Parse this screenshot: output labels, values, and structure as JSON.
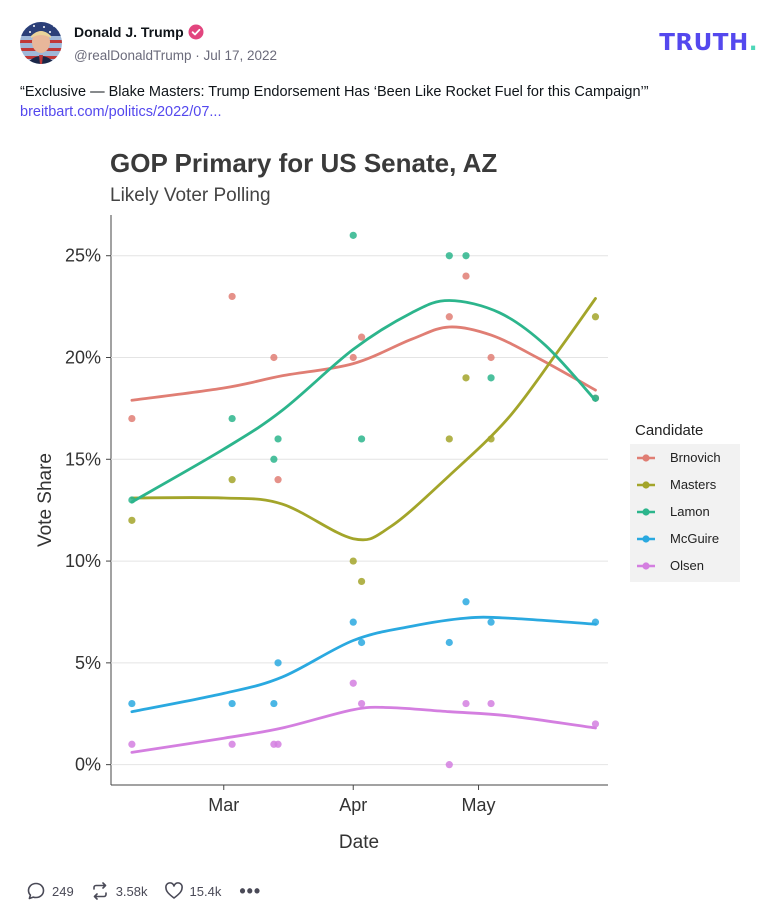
{
  "post": {
    "author_name": "Donald J. Trump",
    "author_handle": "@realDonaldTrump",
    "separator": " · ",
    "date": "Jul 17, 2022",
    "text": "“Exclusive — Blake Masters: Trump Endorsement Has ‘Been Like Rocket Fuel for this Campaign’”",
    "link_text": "breitbart.com/politics/2022/07..."
  },
  "brand": {
    "logo_main": "TRUTH",
    "logo_dot": ".",
    "color": "#5448ee",
    "dot_color": "#4ed7b8"
  },
  "footer": {
    "replies": "249",
    "retruths": "3.58k",
    "likes": "15.4k",
    "more": "•••",
    "icons": [
      "reply-icon",
      "retruth-icon",
      "like-icon",
      "more-icon"
    ]
  },
  "chart_data": {
    "type": "scatter",
    "title": "GOP Primary for US Senate, AZ",
    "subtitle": "Likely Voter Polling",
    "xlabel": "Date",
    "ylabel": "Vote Share",
    "x_ticks": [
      "Mar",
      "Apr",
      "May"
    ],
    "y_ticks": [
      "0%",
      "5%",
      "10%",
      "15%",
      "20%",
      "25%"
    ],
    "x_range": [
      "2022-02-02",
      "2022-06-01"
    ],
    "x_tick_dates": [
      "2022-03-01",
      "2022-04-01",
      "2022-05-01"
    ],
    "ylim": [
      -1,
      27
    ],
    "y_tick_values": [
      0,
      5,
      10,
      15,
      20,
      25
    ],
    "legend_title": "Candidate",
    "legend_position": "right",
    "grid": true,
    "series": [
      {
        "name": "Brnovich",
        "color": "#e07e74",
        "points": [
          [
            "2022-02-07",
            17
          ],
          [
            "2022-03-03",
            23
          ],
          [
            "2022-03-13",
            20
          ],
          [
            "2022-03-14",
            14
          ],
          [
            "2022-04-01",
            20
          ],
          [
            "2022-04-03",
            21
          ],
          [
            "2022-04-24",
            22
          ],
          [
            "2022-04-28",
            24
          ],
          [
            "2022-05-04",
            20
          ],
          [
            "2022-05-29",
            18
          ]
        ],
        "trend": [
          [
            "2022-02-07",
            17.9
          ],
          [
            "2022-03-01",
            18.5
          ],
          [
            "2022-03-15",
            19.1
          ],
          [
            "2022-04-01",
            19.7
          ],
          [
            "2022-04-15",
            20.9
          ],
          [
            "2022-04-24",
            21.5
          ],
          [
            "2022-05-04",
            21.1
          ],
          [
            "2022-05-15",
            20.0
          ],
          [
            "2022-05-29",
            18.4
          ]
        ]
      },
      {
        "name": "Masters",
        "color": "#a3a52a",
        "points": [
          [
            "2022-02-07",
            12
          ],
          [
            "2022-03-03",
            14
          ],
          [
            "2022-04-01",
            10
          ],
          [
            "2022-04-03",
            9
          ],
          [
            "2022-04-24",
            16
          ],
          [
            "2022-04-28",
            19
          ],
          [
            "2022-05-04",
            16
          ],
          [
            "2022-05-29",
            22
          ]
        ],
        "trend": [
          [
            "2022-02-07",
            13.1
          ],
          [
            "2022-03-01",
            13.1
          ],
          [
            "2022-03-15",
            12.8
          ],
          [
            "2022-04-01",
            11.1
          ],
          [
            "2022-04-10",
            11.7
          ],
          [
            "2022-04-24",
            14.2
          ],
          [
            "2022-05-08",
            17.0
          ],
          [
            "2022-05-20",
            20.3
          ],
          [
            "2022-05-29",
            22.9
          ]
        ]
      },
      {
        "name": "Lamon",
        "color": "#2cb58c",
        "points": [
          [
            "2022-02-07",
            13
          ],
          [
            "2022-03-03",
            17
          ],
          [
            "2022-03-13",
            15
          ],
          [
            "2022-03-14",
            16
          ],
          [
            "2022-04-01",
            26
          ],
          [
            "2022-04-03",
            16
          ],
          [
            "2022-04-24",
            25
          ],
          [
            "2022-04-28",
            25
          ],
          [
            "2022-05-04",
            19
          ],
          [
            "2022-05-29",
            18
          ]
        ],
        "trend": [
          [
            "2022-02-07",
            12.9
          ],
          [
            "2022-03-01",
            15.5
          ],
          [
            "2022-03-15",
            17.4
          ],
          [
            "2022-04-01",
            20.4
          ],
          [
            "2022-04-15",
            22.2
          ],
          [
            "2022-04-24",
            22.8
          ],
          [
            "2022-05-06",
            22.2
          ],
          [
            "2022-05-17",
            20.6
          ],
          [
            "2022-05-29",
            17.9
          ]
        ]
      },
      {
        "name": "McGuire",
        "color": "#2aa9e0",
        "points": [
          [
            "2022-02-07",
            3
          ],
          [
            "2022-03-03",
            3
          ],
          [
            "2022-03-13",
            3
          ],
          [
            "2022-03-14",
            5
          ],
          [
            "2022-04-01",
            7
          ],
          [
            "2022-04-03",
            6
          ],
          [
            "2022-04-24",
            6
          ],
          [
            "2022-04-28",
            8
          ],
          [
            "2022-05-04",
            7
          ],
          [
            "2022-05-29",
            7
          ]
        ],
        "trend": [
          [
            "2022-02-07",
            2.6
          ],
          [
            "2022-03-01",
            3.5
          ],
          [
            "2022-03-15",
            4.3
          ],
          [
            "2022-04-01",
            6.1
          ],
          [
            "2022-04-15",
            6.8
          ],
          [
            "2022-04-28",
            7.2
          ],
          [
            "2022-05-08",
            7.2
          ],
          [
            "2022-05-29",
            6.9
          ]
        ]
      },
      {
        "name": "Olsen",
        "color": "#d47fe0",
        "points": [
          [
            "2022-02-07",
            1
          ],
          [
            "2022-03-03",
            1
          ],
          [
            "2022-03-13",
            1
          ],
          [
            "2022-03-14",
            1
          ],
          [
            "2022-04-01",
            4
          ],
          [
            "2022-04-03",
            3
          ],
          [
            "2022-04-24",
            0
          ],
          [
            "2022-04-28",
            3
          ],
          [
            "2022-05-04",
            3
          ],
          [
            "2022-05-29",
            2
          ]
        ],
        "trend": [
          [
            "2022-02-07",
            0.6
          ],
          [
            "2022-03-01",
            1.3
          ],
          [
            "2022-03-15",
            1.8
          ],
          [
            "2022-04-01",
            2.7
          ],
          [
            "2022-04-10",
            2.8
          ],
          [
            "2022-04-24",
            2.6
          ],
          [
            "2022-05-08",
            2.4
          ],
          [
            "2022-05-29",
            1.8
          ]
        ]
      }
    ]
  }
}
